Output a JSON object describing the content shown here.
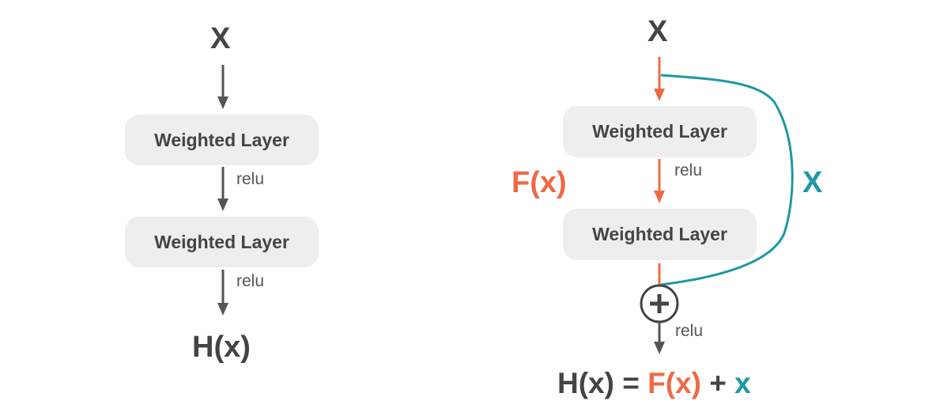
{
  "colors": {
    "text_dark": "#444444",
    "box_fill": "#eeeeee",
    "arrow_gray": "#555555",
    "residual_orange": "#ee6a45",
    "skip_teal": "#1f97a4"
  },
  "plain_block": {
    "input_label": "X",
    "layer1_label": "Weighted Layer",
    "activation1": "relu",
    "layer2_label": "Weighted Layer",
    "activation2": "relu",
    "output_label": "H(x)"
  },
  "residual_block": {
    "input_label": "X",
    "layer1_label": "Weighted Layer",
    "activation1": "relu",
    "layer2_label": "Weighted Layer",
    "residual_label": "F(x)",
    "skip_label": "X",
    "add_icon": "plus-circle-icon",
    "activation2": "relu",
    "formula": {
      "lhs": "H(x) = ",
      "fx": "F(x)",
      "plus": " + ",
      "x": "x"
    }
  }
}
